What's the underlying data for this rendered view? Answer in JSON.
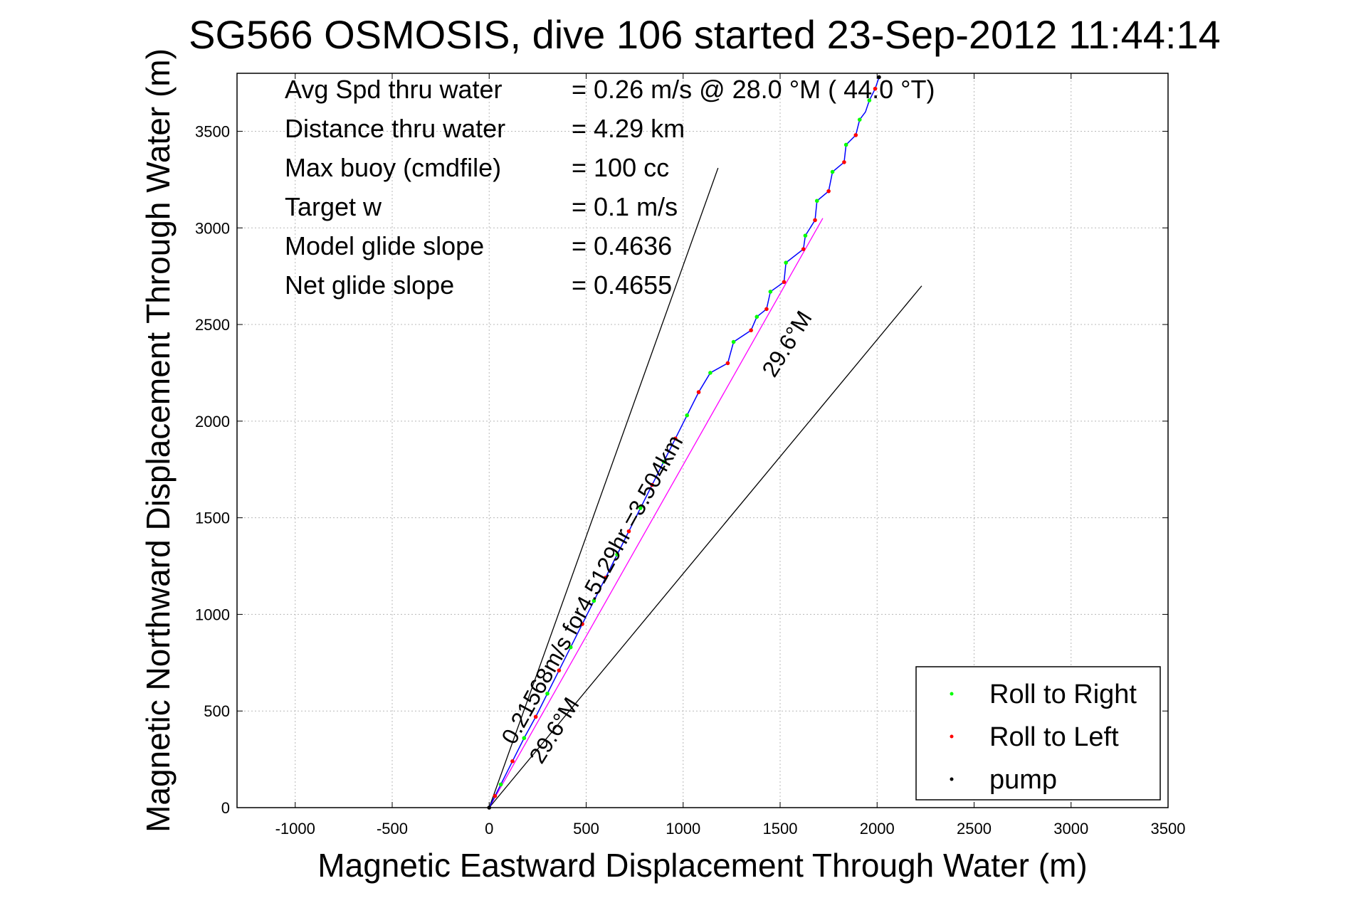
{
  "chart_data": {
    "type": "line",
    "title": "SG566 OSMOSIS, dive 106 started 23-Sep-2012 11:44:14",
    "xlabel": "Magnetic Eastward Displacement Through Water (m)",
    "ylabel": "Magnetic Northward Displacement Through Water (m)",
    "xlim": [
      -1300,
      3500
    ],
    "ylim": [
      0,
      3800
    ],
    "xticks": [
      -1000,
      -500,
      0,
      500,
      1000,
      1500,
      2000,
      2500,
      3000,
      3500
    ],
    "yticks": [
      0,
      500,
      1000,
      1500,
      2000,
      2500,
      3000,
      3500
    ],
    "grid": true,
    "legend_position": "bottom-right",
    "stats": [
      {
        "label": "Avg Spd thru water",
        "value": "=  0.26 m/s @  28.0 °M ( 44.0 °T)"
      },
      {
        "label": "Distance thru water",
        "value": "=  4.29 km"
      },
      {
        "label": "Max buoy (cmdfile)",
        "value": "= 100 cc"
      },
      {
        "label": "Target w",
        "value": "= 0.1 m/s"
      },
      {
        "label": "Model glide slope",
        "value": "= 0.4636"
      },
      {
        "label": "Net glide slope",
        "value": "= 0.4655"
      }
    ],
    "annotations": {
      "current": "0.21568m/s for4.5129hr =3.504km",
      "heading_upper": "29.6°M",
      "heading_lower": "29.6°M"
    },
    "reference_lines": [
      {
        "from": [
          0,
          0
        ],
        "to": [
          1180,
          3310
        ],
        "color": "#000000"
      },
      {
        "from": [
          0,
          0
        ],
        "to": [
          2230,
          2700
        ],
        "color": "#000000"
      },
      {
        "from": [
          0,
          0
        ],
        "to": [
          1720,
          3050
        ],
        "color": "#ff00ff"
      }
    ],
    "track": {
      "name": "glider track",
      "color": "#0000ff",
      "points": [
        [
          0,
          0
        ],
        [
          60,
          120
        ],
        [
          120,
          240
        ],
        [
          180,
          360
        ],
        [
          240,
          470
        ],
        [
          300,
          590
        ],
        [
          360,
          710
        ],
        [
          420,
          830
        ],
        [
          480,
          950
        ],
        [
          540,
          1070
        ],
        [
          600,
          1190
        ],
        [
          660,
          1310
        ],
        [
          720,
          1430
        ],
        [
          780,
          1550
        ],
        [
          840,
          1670
        ],
        [
          900,
          1790
        ],
        [
          960,
          1910
        ],
        [
          1020,
          2030
        ],
        [
          1080,
          2150
        ],
        [
          1140,
          2250
        ],
        [
          1230,
          2300
        ],
        [
          1260,
          2410
        ],
        [
          1350,
          2470
        ],
        [
          1380,
          2540
        ],
        [
          1430,
          2580
        ],
        [
          1450,
          2670
        ],
        [
          1520,
          2720
        ],
        [
          1530,
          2820
        ],
        [
          1620,
          2890
        ],
        [
          1630,
          2960
        ],
        [
          1680,
          3040
        ],
        [
          1690,
          3140
        ],
        [
          1750,
          3190
        ],
        [
          1770,
          3290
        ],
        [
          1830,
          3340
        ],
        [
          1840,
          3430
        ],
        [
          1890,
          3480
        ],
        [
          1910,
          3560
        ],
        [
          1940,
          3600
        ],
        [
          1960,
          3660
        ],
        [
          1990,
          3720
        ],
        [
          2010,
          3780
        ]
      ]
    },
    "series": [
      {
        "name": "Roll to Right",
        "color": "#00ff00",
        "x": [
          60,
          180,
          300,
          420,
          540,
          660,
          780,
          900,
          1020,
          1140,
          1260,
          1380,
          1450,
          1530,
          1630,
          1690,
          1770,
          1840,
          1910,
          1960
        ],
        "y": [
          120,
          360,
          590,
          830,
          1070,
          1310,
          1550,
          1790,
          2030,
          2250,
          2410,
          2540,
          2670,
          2820,
          2960,
          3140,
          3290,
          3430,
          3560,
          3660
        ]
      },
      {
        "name": "Roll to Left",
        "color": "#ff0000",
        "x": [
          30,
          120,
          240,
          360,
          480,
          600,
          720,
          840,
          960,
          1080,
          1230,
          1350,
          1430,
          1520,
          1620,
          1680,
          1750,
          1830,
          1890,
          1990
        ],
        "y": [
          60,
          240,
          470,
          710,
          950,
          1190,
          1430,
          1670,
          1910,
          2150,
          2300,
          2470,
          2580,
          2720,
          2890,
          3040,
          3190,
          3340,
          3480,
          3720
        ]
      },
      {
        "name": "pump",
        "color": "#000000",
        "x": [
          0,
          2010
        ],
        "y": [
          0,
          3780
        ]
      }
    ]
  }
}
